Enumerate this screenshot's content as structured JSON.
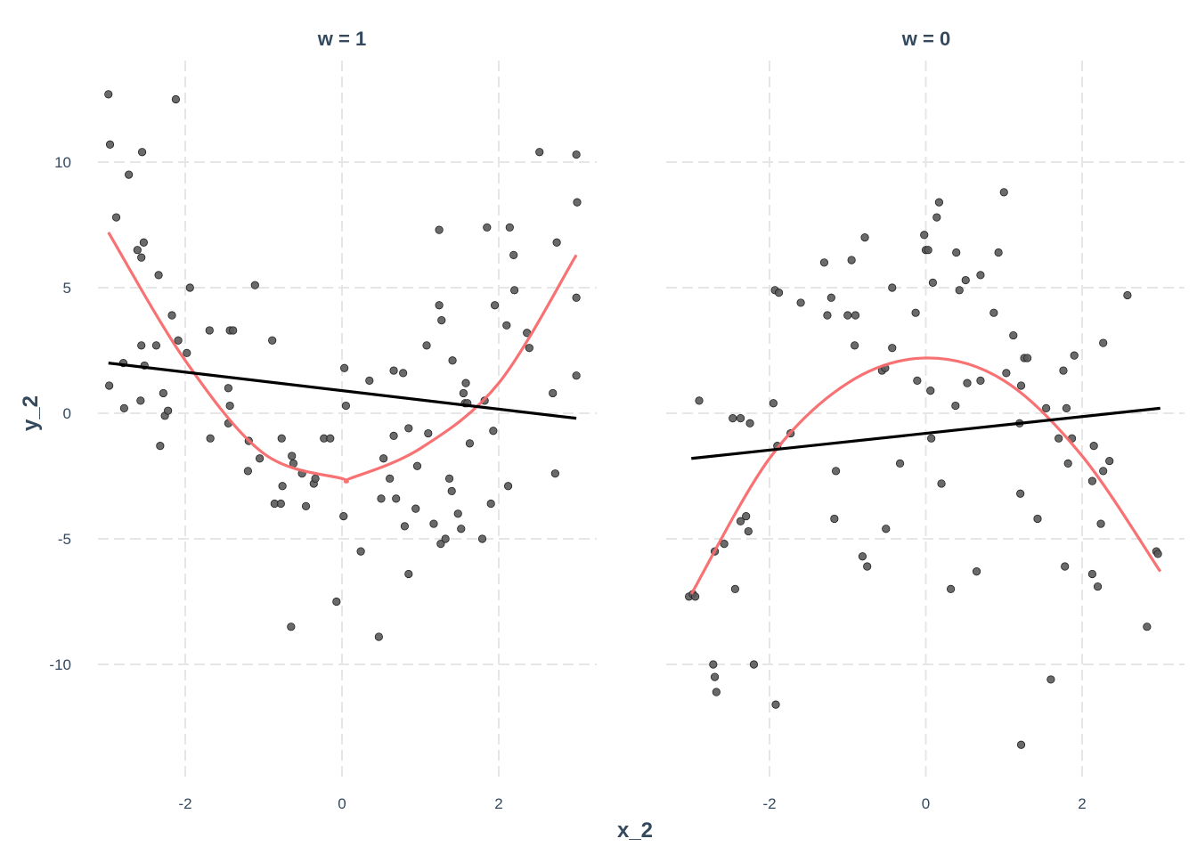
{
  "chart_data": {
    "type": "scatter",
    "xlabel": "x_2",
    "ylabel": "y_2",
    "x_ticks": [
      -2,
      0,
      2
    ],
    "y_ticks": [
      -10,
      -5,
      0,
      5,
      10
    ],
    "xlim": [
      -3.2,
      3.2
    ],
    "ylim": [
      -14.3,
      13.7
    ],
    "grid": true,
    "legend": "none",
    "panels": [
      {
        "title": "w = 1",
        "points": [
          [
            -2.98,
            12.7
          ],
          [
            -2.96,
            10.7
          ],
          [
            -2.97,
            1.1
          ],
          [
            -2.88,
            7.8
          ],
          [
            -2.79,
            2.0
          ],
          [
            -2.78,
            0.2
          ],
          [
            -2.72,
            9.5
          ],
          [
            -2.61,
            6.5
          ],
          [
            -2.55,
            10.4
          ],
          [
            -2.56,
            6.2
          ],
          [
            -2.56,
            2.7
          ],
          [
            -2.57,
            0.5
          ],
          [
            -2.53,
            6.8
          ],
          [
            -2.52,
            1.9
          ],
          [
            -2.34,
            5.5
          ],
          [
            -2.37,
            2.7
          ],
          [
            -2.32,
            -1.3
          ],
          [
            -2.28,
            0.8
          ],
          [
            -2.26,
            -0.1
          ],
          [
            -2.22,
            0.1
          ],
          [
            -2.17,
            3.9
          ],
          [
            -2.12,
            12.5
          ],
          [
            -2.09,
            2.9
          ],
          [
            -1.98,
            2.4
          ],
          [
            -1.94,
            5.0
          ],
          [
            -1.69,
            3.3
          ],
          [
            -1.68,
            -1.0
          ],
          [
            -1.43,
            3.3
          ],
          [
            -1.39,
            3.3
          ],
          [
            -1.45,
            1.0
          ],
          [
            -1.43,
            0.3
          ],
          [
            -1.45,
            -0.4
          ],
          [
            -1.11,
            5.1
          ],
          [
            -1.19,
            -1.1
          ],
          [
            -1.2,
            -2.3
          ],
          [
            -1.05,
            -1.8
          ],
          [
            -0.89,
            2.9
          ],
          [
            -0.86,
            -3.6
          ],
          [
            -0.78,
            -3.6
          ],
          [
            -0.77,
            -1.0
          ],
          [
            -0.76,
            -2.9
          ],
          [
            -0.64,
            -1.7
          ],
          [
            -0.62,
            -2.0
          ],
          [
            -0.65,
            -8.5
          ],
          [
            -0.51,
            -2.4
          ],
          [
            -0.46,
            -3.7
          ],
          [
            -0.36,
            -2.8
          ],
          [
            -0.34,
            -2.6
          ],
          [
            -0.23,
            -1.0
          ],
          [
            -0.15,
            -1.0
          ],
          [
            -0.07,
            -7.5
          ],
          [
            0.03,
            1.8
          ],
          [
            0.05,
            0.3
          ],
          [
            0.02,
            -4.1
          ],
          [
            0.24,
            -5.5
          ],
          [
            0.35,
            1.3
          ],
          [
            0.47,
            -8.9
          ],
          [
            0.5,
            -3.4
          ],
          [
            0.53,
            -1.8
          ],
          [
            0.61,
            -2.6
          ],
          [
            0.69,
            -3.4
          ],
          [
            0.66,
            1.7
          ],
          [
            0.66,
            -0.9
          ],
          [
            0.8,
            -4.5
          ],
          [
            0.78,
            1.6
          ],
          [
            0.85,
            -0.6
          ],
          [
            0.85,
            -6.4
          ],
          [
            0.94,
            -3.8
          ],
          [
            0.96,
            -2.1
          ],
          [
            1.08,
            2.7
          ],
          [
            1.1,
            -0.8
          ],
          [
            1.17,
            -4.4
          ],
          [
            1.24,
            4.3
          ],
          [
            1.27,
            3.7
          ],
          [
            1.24,
            7.3
          ],
          [
            1.26,
            -5.2
          ],
          [
            1.32,
            -5.0
          ],
          [
            1.37,
            -2.6
          ],
          [
            1.4,
            -3.1
          ],
          [
            1.41,
            2.1
          ],
          [
            1.48,
            -4.0
          ],
          [
            1.52,
            -4.6
          ],
          [
            1.55,
            0.8
          ],
          [
            1.57,
            0.4
          ],
          [
            1.58,
            1.2
          ],
          [
            1.6,
            0.4
          ],
          [
            1.63,
            -1.2
          ],
          [
            1.79,
            -5.0
          ],
          [
            1.82,
            0.5
          ],
          [
            1.85,
            7.4
          ],
          [
            1.9,
            -3.6
          ],
          [
            1.93,
            -0.7
          ],
          [
            1.95,
            4.3
          ],
          [
            2.1,
            3.5
          ],
          [
            2.12,
            -2.9
          ],
          [
            2.14,
            7.4
          ],
          [
            2.19,
            6.3
          ],
          [
            2.2,
            4.9
          ],
          [
            2.36,
            3.2
          ],
          [
            2.39,
            2.6
          ],
          [
            2.52,
            10.4
          ],
          [
            2.69,
            0.8
          ],
          [
            2.72,
            -2.4
          ],
          [
            2.74,
            6.8
          ],
          [
            2.99,
            10.3
          ],
          [
            3.0,
            8.4
          ],
          [
            2.99,
            4.6
          ],
          [
            2.99,
            1.5
          ]
        ],
        "linear_fit": {
          "x": [
            -2.98,
            2.99
          ],
          "y": [
            2.0,
            -0.2
          ]
        },
        "quadratic_fit": {
          "x": [
            -2.98,
            -2.0,
            -1.0,
            0.0,
            0.1,
            1.0,
            2.0,
            2.99
          ],
          "y": [
            7.2,
            2.1,
            -1.6,
            -2.6,
            -2.6,
            -1.4,
            1.2,
            6.3
          ]
        }
      },
      {
        "title": "w = 0",
        "points": [
          [
            -3.03,
            -7.3
          ],
          [
            -2.98,
            -7.2
          ],
          [
            -2.95,
            -7.3
          ],
          [
            -2.9,
            0.5
          ],
          [
            -2.7,
            -5.5
          ],
          [
            -2.72,
            -10.0
          ],
          [
            -2.7,
            -10.5
          ],
          [
            -2.68,
            -11.1
          ],
          [
            -2.58,
            -5.2
          ],
          [
            -2.47,
            -0.2
          ],
          [
            -2.44,
            -7.0
          ],
          [
            -2.37,
            -0.2
          ],
          [
            -2.37,
            -4.3
          ],
          [
            -2.3,
            -4.1
          ],
          [
            -2.25,
            -0.4
          ],
          [
            -2.27,
            -4.7
          ],
          [
            -2.2,
            -10.0
          ],
          [
            -1.93,
            4.9
          ],
          [
            -1.95,
            0.4
          ],
          [
            -1.9,
            -1.3
          ],
          [
            -1.92,
            -11.6
          ],
          [
            -1.88,
            4.8
          ],
          [
            -1.6,
            4.4
          ],
          [
            -1.73,
            -0.8
          ],
          [
            -1.3,
            6.0
          ],
          [
            -1.26,
            3.9
          ],
          [
            -1.21,
            4.6
          ],
          [
            -1.17,
            -4.2
          ],
          [
            -1.15,
            -2.3
          ],
          [
            -1.0,
            3.9
          ],
          [
            -0.95,
            6.1
          ],
          [
            -0.91,
            2.7
          ],
          [
            -0.9,
            3.9
          ],
          [
            -0.81,
            -5.7
          ],
          [
            -0.78,
            7.0
          ],
          [
            -0.75,
            -6.1
          ],
          [
            -0.56,
            1.7
          ],
          [
            -0.52,
            1.8
          ],
          [
            -0.51,
            -4.6
          ],
          [
            -0.43,
            2.6
          ],
          [
            -0.43,
            5.0
          ],
          [
            -0.33,
            -2.0
          ],
          [
            -0.11,
            1.3
          ],
          [
            -0.13,
            4.0
          ],
          [
            -0.02,
            7.1
          ],
          [
            0.0,
            6.5
          ],
          [
            0.03,
            6.5
          ],
          [
            0.06,
            0.9
          ],
          [
            0.09,
            5.2
          ],
          [
            0.14,
            7.8
          ],
          [
            0.17,
            8.4
          ],
          [
            0.2,
            -2.8
          ],
          [
            0.07,
            -1.0
          ],
          [
            0.32,
            -7.0
          ],
          [
            0.38,
            0.3
          ],
          [
            0.39,
            6.4
          ],
          [
            0.43,
            4.9
          ],
          [
            0.51,
            5.3
          ],
          [
            0.53,
            1.2
          ],
          [
            0.7,
            1.3
          ],
          [
            0.7,
            5.5
          ],
          [
            0.65,
            -6.3
          ],
          [
            0.87,
            4.0
          ],
          [
            0.93,
            6.4
          ],
          [
            1.0,
            8.8
          ],
          [
            1.03,
            1.6
          ],
          [
            1.12,
            3.1
          ],
          [
            1.2,
            -0.4
          ],
          [
            1.22,
            1.1
          ],
          [
            1.21,
            -3.2
          ],
          [
            1.26,
            2.2
          ],
          [
            1.3,
            2.2
          ],
          [
            1.22,
            -13.2
          ],
          [
            1.43,
            -4.2
          ],
          [
            1.54,
            0.2
          ],
          [
            1.6,
            -10.6
          ],
          [
            1.7,
            -1.0
          ],
          [
            1.76,
            1.7
          ],
          [
            1.8,
            0.2
          ],
          [
            1.78,
            -6.1
          ],
          [
            1.82,
            -2.0
          ],
          [
            1.87,
            -1.0
          ],
          [
            1.9,
            2.3
          ],
          [
            2.13,
            -2.7
          ],
          [
            2.15,
            -1.3
          ],
          [
            2.13,
            -6.4
          ],
          [
            2.2,
            -6.9
          ],
          [
            2.24,
            -4.4
          ],
          [
            2.27,
            2.8
          ],
          [
            2.27,
            -2.3
          ],
          [
            2.35,
            -1.9
          ],
          [
            2.58,
            4.7
          ],
          [
            2.83,
            -8.5
          ],
          [
            2.95,
            -5.5
          ],
          [
            2.97,
            -5.6
          ]
        ],
        "linear_fit": {
          "x": [
            -3.0,
            3.0
          ],
          "y": [
            -1.8,
            0.2
          ]
        },
        "quadratic_fit": {
          "x": [
            -3.0,
            -2.0,
            -1.0,
            0.0,
            1.0,
            2.0,
            3.0
          ],
          "y": [
            -7.2,
            -1.8,
            1.2,
            2.2,
            1.3,
            -1.7,
            -6.3
          ]
        }
      }
    ]
  }
}
